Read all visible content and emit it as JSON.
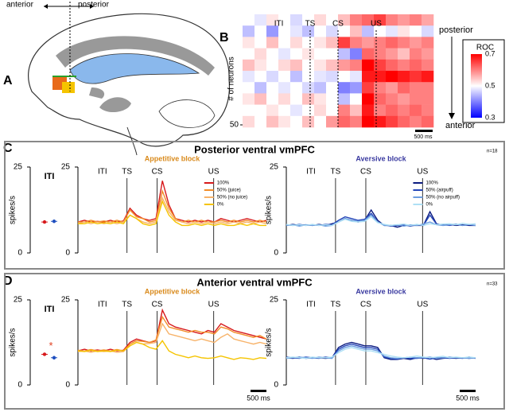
{
  "panel_labels": [
    "A",
    "B",
    "C",
    "D"
  ],
  "brain_labels": {
    "anterior": "anterior",
    "posterior": "posterior"
  },
  "sections": [
    {
      "title": "Posterior ventral vmPFC",
      "n": "n=18"
    },
    {
      "title": "Anterior ventral vmPFC",
      "n": "n=33"
    }
  ],
  "chart_data": [
    {
      "type": "heatmap",
      "events": [
        "ITI",
        "TS",
        "CS",
        "US"
      ],
      "ylabel": "# of neurons",
      "ylim": [
        1,
        50
      ],
      "yticks": [
        50
      ],
      "direction_labels": [
        "posterior",
        "anterior"
      ],
      "scalebar": "500 ms",
      "colorbar": {
        "title": "ROC",
        "clim": [
          0.3,
          0.7
        ],
        "ticks": [
          0.7,
          0.5,
          0.3
        ],
        "colors": [
          "#0000ff",
          "#ffffff",
          "#ff0000"
        ]
      },
      "values": [
        [
          0.5,
          0.48,
          0.52,
          0.5,
          0.47,
          0.5,
          0.53,
          0.5,
          0.55,
          0.6,
          0.62,
          0.65,
          0.6,
          0.58,
          0.6,
          0.57
        ],
        [
          0.45,
          0.5,
          0.42,
          0.5,
          0.48,
          0.45,
          0.5,
          0.47,
          0.5,
          0.55,
          0.45,
          0.5,
          0.48,
          0.52,
          0.5,
          0.47
        ],
        [
          0.52,
          0.5,
          0.55,
          0.5,
          0.53,
          0.5,
          0.52,
          0.55,
          0.65,
          0.6,
          0.58,
          0.6,
          0.62,
          0.6,
          0.58,
          0.6
        ],
        [
          0.5,
          0.53,
          0.5,
          0.48,
          0.5,
          0.52,
          0.5,
          0.5,
          0.45,
          0.4,
          0.62,
          0.6,
          0.58,
          0.55,
          0.6,
          0.58
        ],
        [
          0.55,
          0.52,
          0.5,
          0.53,
          0.55,
          0.5,
          0.52,
          0.55,
          0.58,
          0.6,
          0.7,
          0.65,
          0.62,
          0.6,
          0.62,
          0.6
        ],
        [
          0.48,
          0.5,
          0.47,
          0.5,
          0.45,
          0.5,
          0.48,
          0.47,
          0.5,
          0.48,
          0.68,
          0.68,
          0.7,
          0.68,
          0.66,
          0.68
        ],
        [
          0.5,
          0.45,
          0.5,
          0.48,
          0.5,
          0.47,
          0.45,
          0.5,
          0.4,
          0.42,
          0.65,
          0.6,
          0.58,
          0.62,
          0.6,
          0.6
        ],
        [
          0.52,
          0.55,
          0.5,
          0.53,
          0.5,
          0.55,
          0.52,
          0.5,
          0.45,
          0.5,
          0.7,
          0.62,
          0.6,
          0.58,
          0.6,
          0.6
        ],
        [
          0.5,
          0.5,
          0.52,
          0.5,
          0.48,
          0.5,
          0.53,
          0.5,
          0.6,
          0.55,
          0.68,
          0.6,
          0.62,
          0.6,
          0.62,
          0.6
        ],
        [
          0.53,
          0.5,
          0.55,
          0.52,
          0.5,
          0.55,
          0.5,
          0.58,
          0.62,
          0.6,
          0.7,
          0.68,
          0.65,
          0.62,
          0.6,
          0.62
        ]
      ]
    },
    {
      "type": "dot",
      "title": "ITI",
      "ylabel": "spikes/s",
      "ylim": [
        0,
        25
      ],
      "yticks": [
        0,
        25
      ],
      "series": [
        {
          "color": "#d7191c",
          "values": [
            9
          ]
        },
        {
          "color": "#1f4fbf",
          "values": [
            9.2
          ]
        }
      ]
    },
    {
      "type": "line",
      "title": "Appetitive block",
      "title_color": "#d98a1c",
      "events": [
        "ITI",
        "TS",
        "CS",
        "US"
      ],
      "ylim": [
        0,
        25
      ],
      "yticks": [
        0,
        25
      ],
      "series": [
        {
          "name": "100%",
          "color": "#d7191c",
          "values": [
            9,
            9.5,
            9,
            9.2,
            9,
            9.5,
            9,
            9.3,
            13,
            11,
            10,
            9.5,
            10,
            21,
            14,
            10,
            9.5,
            9,
            9.5,
            9,
            9.5,
            9,
            10,
            9.5,
            9,
            9.5,
            10,
            9.5,
            9,
            9.5
          ]
        },
        {
          "name": "50% (juice)",
          "color": "#f28c28",
          "values": [
            9,
            9,
            9.5,
            9,
            9.3,
            9,
            9.5,
            9,
            12.5,
            10.5,
            10,
            9,
            9.5,
            18,
            13,
            10,
            9,
            9.5,
            9,
            9.5,
            9,
            9,
            9.5,
            9,
            9.5,
            9,
            9.5,
            9,
            9.5,
            9
          ]
        },
        {
          "name": "50% (no juice)",
          "color": "#f7b36a",
          "values": [
            8.5,
            9,
            8.5,
            9,
            8.5,
            9,
            8.5,
            9,
            11,
            10,
            9,
            8.5,
            9,
            16,
            12,
            9.5,
            9,
            8.5,
            9,
            8.5,
            9,
            8.5,
            9,
            8.5,
            9,
            8.5,
            9,
            8.5,
            9,
            8.5
          ]
        },
        {
          "name": "0%",
          "color": "#f5c400",
          "values": [
            8.5,
            8.5,
            9,
            8.5,
            8.8,
            8.5,
            9,
            8.5,
            11,
            10,
            8.5,
            8,
            8.5,
            15,
            11,
            9,
            8,
            8,
            8.5,
            8,
            8.5,
            8,
            8.5,
            8,
            8,
            8.5,
            8,
            8.5,
            8,
            8
          ]
        }
      ]
    },
    {
      "type": "line",
      "title": "Aversive block",
      "title_color": "#3a3aa0",
      "ylabel": "spikes/s",
      "events": [
        "ITI",
        "TS",
        "CS",
        "US"
      ],
      "ylim": [
        0,
        25
      ],
      "yticks": [
        0,
        25
      ],
      "series": [
        {
          "name": "100%",
          "color": "#0b1a80",
          "values": [
            8,
            8.3,
            8,
            8.2,
            8,
            8.3,
            8,
            8.5,
            9,
            10,
            9.5,
            9,
            9.5,
            12.5,
            9.5,
            8,
            8,
            7.5,
            8,
            8,
            8,
            8,
            12,
            8.5,
            8,
            8.3,
            8,
            8.2,
            8,
            8
          ]
        },
        {
          "name": "50% (airpuff)",
          "color": "#2446b8",
          "values": [
            8.2,
            8,
            8.3,
            8,
            8.2,
            8,
            8.3,
            8.2,
            9.5,
            10.5,
            10,
            9.5,
            9.8,
            11.5,
            9,
            8.2,
            7.8,
            8,
            8.2,
            7.8,
            8.2,
            8,
            11,
            8.4,
            8.2,
            8,
            8.3,
            8,
            8.2,
            8
          ]
        },
        {
          "name": "50% (no airpuff)",
          "color": "#6d9ee0",
          "values": [
            8,
            8.2,
            7.8,
            8.2,
            8,
            8.2,
            7.8,
            8,
            9,
            10,
            9.5,
            9.2,
            9.5,
            11,
            9,
            8,
            8,
            8.2,
            7.8,
            8.2,
            8,
            8.4,
            9,
            8.2,
            8,
            8.2,
            8.4,
            8,
            8.3,
            8
          ]
        },
        {
          "name": "0%",
          "color": "#aee0f5",
          "values": [
            8.3,
            8,
            8.2,
            8,
            8.3,
            8,
            8.2,
            8,
            9,
            9.8,
            9.2,
            9,
            9.2,
            10.5,
            8.8,
            8.3,
            8,
            8.2,
            8.4,
            8,
            8.3,
            8,
            8.5,
            8.2,
            8.4,
            8.5,
            8.2,
            8.6,
            8.3,
            8.5
          ]
        }
      ]
    },
    {
      "type": "dot",
      "title": "ITI",
      "ylabel": "spikes/s",
      "annotation": "*",
      "ylim": [
        0,
        25
      ],
      "yticks": [
        0,
        25
      ],
      "series": [
        {
          "color": "#d7191c",
          "values": [
            9
          ]
        },
        {
          "color": "#1f4fbf",
          "values": [
            8
          ]
        }
      ]
    },
    {
      "type": "line",
      "title": "Appetitive block",
      "title_color": "#d98a1c",
      "events": [
        "ITI",
        "TS",
        "CS",
        "US"
      ],
      "scalebar": "500 ms",
      "ylim": [
        0,
        25
      ],
      "yticks": [
        0,
        25
      ],
      "series": [
        {
          "color": "#d7191c",
          "values": [
            10,
            10.5,
            10,
            10.3,
            10,
            10.5,
            10,
            10.2,
            12.5,
            13.5,
            13,
            12.5,
            13,
            22,
            18,
            17,
            16.5,
            16,
            15.5,
            15,
            16,
            15.5,
            18,
            17,
            16,
            15.5,
            15,
            14.5,
            14,
            13.5
          ]
        },
        {
          "color": "#f28c28",
          "values": [
            10.2,
            10,
            10.4,
            10,
            10.3,
            10,
            10.4,
            10,
            12,
            13,
            12.8,
            12.5,
            13.2,
            20,
            17,
            16.5,
            16,
            15.5,
            16,
            15.5,
            15.5,
            15,
            17,
            16.5,
            15.5,
            15,
            14.5,
            14,
            14.5,
            13.5
          ]
        },
        {
          "color": "#f7b36a",
          "values": [
            9.8,
            10,
            9.6,
            10,
            9.8,
            10,
            9.6,
            9.8,
            11.5,
            12.5,
            12,
            12.2,
            12.5,
            18,
            15,
            14.5,
            14,
            13.5,
            13,
            13.5,
            13,
            12.5,
            14,
            15,
            13.5,
            13,
            12.5,
            12,
            12.5,
            12
          ]
        },
        {
          "color": "#f5c400",
          "values": [
            10,
            9.8,
            10.2,
            9.8,
            10,
            9.8,
            10.2,
            10,
            11.5,
            12.5,
            12,
            11,
            10.5,
            13,
            10,
            9,
            8.5,
            8,
            8.5,
            8,
            7.8,
            8,
            8.5,
            8,
            7.5,
            8,
            7.8,
            7.5,
            8,
            7.8
          ]
        }
      ]
    },
    {
      "type": "line",
      "title": "Aversive block",
      "title_color": "#3a3aa0",
      "ylabel": "spikes/s",
      "events": [
        "ITI",
        "TS",
        "CS",
        "US"
      ],
      "scalebar": "500 ms",
      "ylim": [
        0,
        25
      ],
      "yticks": [
        0,
        25
      ],
      "series": [
        {
          "color": "#0b1a80",
          "values": [
            8,
            7.8,
            8.2,
            7.8,
            8,
            8,
            7.8,
            8,
            11,
            12,
            12.5,
            12,
            11.5,
            11.5,
            11,
            8,
            7.5,
            7.5,
            7.8,
            7.5,
            8,
            7.8,
            8,
            7.5,
            7.8,
            8,
            7.8,
            8,
            7.8,
            8
          ]
        },
        {
          "color": "#2446b8",
          "values": [
            8.2,
            8,
            7.8,
            8.2,
            8,
            7.8,
            8.2,
            8,
            10.5,
            11.5,
            12,
            11.5,
            11,
            11,
            10.5,
            8.2,
            7.8,
            7.6,
            8,
            7.8,
            7.8,
            8,
            7.6,
            8,
            8,
            7.8,
            8,
            7.8,
            8.2,
            7.8
          ]
        },
        {
          "color": "#6d9ee0",
          "values": [
            7.8,
            8,
            8.2,
            8,
            7.8,
            8.2,
            8,
            7.8,
            10,
            11,
            11.5,
            11,
            10.5,
            10.5,
            10,
            8.5,
            8,
            7.8,
            8,
            8.2,
            8,
            8,
            8.2,
            7.8,
            8,
            8.2,
            8,
            8,
            7.8,
            8
          ]
        },
        {
          "color": "#aee0f5",
          "values": [
            8,
            8.2,
            8,
            7.8,
            8.2,
            8,
            8,
            8.2,
            9.5,
            10.5,
            11,
            10.5,
            10,
            10,
            9.5,
            9,
            8.5,
            8.2,
            8,
            8.2,
            8.5,
            8.2,
            8,
            8.2,
            8.4,
            8,
            8.2,
            8,
            8.2,
            8
          ]
        }
      ]
    }
  ]
}
